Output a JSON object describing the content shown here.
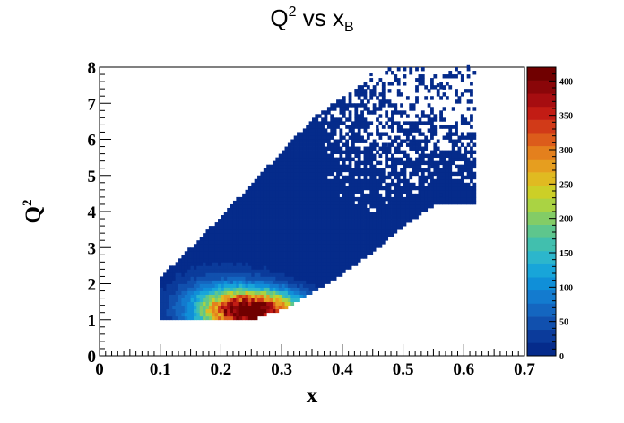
{
  "chart_data": {
    "type": "heatmap",
    "title": {
      "base": "Q",
      "sup": "2",
      "mid": " vs x",
      "sub": "B"
    },
    "xlabel": "x",
    "ylabel": {
      "base": "Q",
      "sup": "2"
    },
    "xlim": [
      0,
      0.7
    ],
    "ylim": [
      0,
      8
    ],
    "x_ticks": [
      "0",
      "0.1",
      "0.2",
      "0.3",
      "0.4",
      "0.5",
      "0.6",
      "0.7"
    ],
    "y_ticks": [
      "0",
      "1",
      "2",
      "3",
      "4",
      "5",
      "6",
      "7",
      "8"
    ],
    "colorbar": {
      "range": [
        0,
        420
      ],
      "ticks": [
        "0",
        "50",
        "100",
        "150",
        "200",
        "250",
        "300",
        "350",
        "400"
      ],
      "colors": [
        "#052b8b",
        "#0b3b9b",
        "#1150ae",
        "#1466c0",
        "#137bcf",
        "#108fd8",
        "#18a5d9",
        "#2cb6cc",
        "#41bfae",
        "#5ec68d",
        "#83cc66",
        "#aad343",
        "#cccf27",
        "#e0ba21",
        "#e69e1f",
        "#e4801d",
        "#dc5c1b",
        "#d13a18",
        "#c21c14",
        "#a60d10",
        "#8a0609",
        "#700000"
      ]
    },
    "bins": {
      "x_width": 0.005,
      "y_width": 0.1
    },
    "peak": {
      "x": 0.25,
      "y": 1.25,
      "value": 420
    },
    "region": {
      "x_min": 0.1,
      "q2_min": 1.0,
      "q2_max_at_xmin": 2.2,
      "upper_edge": [
        [
          0.1,
          2.2
        ],
        [
          0.2,
          3.9
        ],
        [
          0.3,
          5.7
        ],
        [
          0.35,
          6.6
        ],
        [
          0.4,
          7.2
        ],
        [
          0.48,
          8.0
        ]
      ],
      "lower_edge": [
        [
          0.1,
          1.0
        ],
        [
          0.25,
          1.0
        ],
        [
          0.3,
          1.3
        ],
        [
          0.35,
          1.75
        ],
        [
          0.4,
          2.3
        ],
        [
          0.45,
          2.9
        ],
        [
          0.5,
          3.6
        ],
        [
          0.55,
          4.2
        ]
      ]
    }
  }
}
